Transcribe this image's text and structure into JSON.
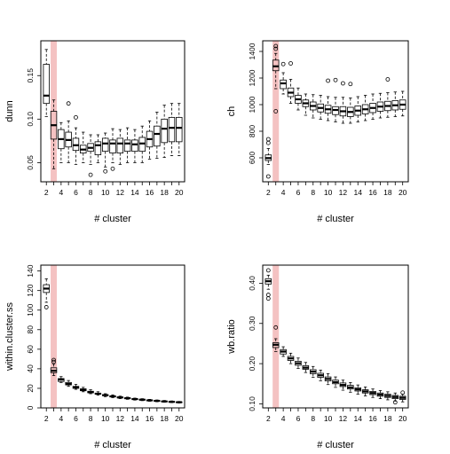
{
  "chart_data": [
    {
      "type": "boxplot",
      "xlabel": "# cluster",
      "ylabel": "dunn",
      "x_tick_labels": [
        "2",
        "4",
        "6",
        "8",
        "10",
        "12",
        "14",
        "16",
        "18",
        "20"
      ],
      "y_ticks": [
        0.05,
        0.1,
        0.15
      ],
      "y_tick_labels": [
        "0.05",
        "0.10",
        "0.15"
      ],
      "ylim": [
        0.028,
        0.19
      ],
      "highlight_cluster": 3,
      "highlight_color": "#f4c2c2",
      "boxes": [
        {
          "k": 2,
          "lo": 0.103,
          "q1": 0.118,
          "med": 0.127,
          "q3": 0.163,
          "hi": 0.18,
          "out": []
        },
        {
          "k": 3,
          "lo": 0.043,
          "q1": 0.077,
          "med": 0.093,
          "q3": 0.109,
          "hi": 0.122,
          "out": []
        },
        {
          "k": 4,
          "lo": 0.05,
          "q1": 0.066,
          "med": 0.077,
          "q3": 0.088,
          "hi": 0.096,
          "out": []
        },
        {
          "k": 5,
          "lo": 0.05,
          "q1": 0.068,
          "med": 0.076,
          "q3": 0.085,
          "hi": 0.098,
          "out": [
            0.118
          ]
        },
        {
          "k": 6,
          "lo": 0.048,
          "q1": 0.064,
          "med": 0.07,
          "q3": 0.078,
          "hi": 0.09,
          "out": [
            0.102
          ]
        },
        {
          "k": 7,
          "lo": 0.05,
          "q1": 0.061,
          "med": 0.065,
          "q3": 0.07,
          "hi": 0.085,
          "out": []
        },
        {
          "k": 8,
          "lo": 0.048,
          "q1": 0.063,
          "med": 0.067,
          "q3": 0.072,
          "hi": 0.082,
          "out": [
            0.036
          ]
        },
        {
          "k": 9,
          "lo": 0.05,
          "q1": 0.059,
          "med": 0.07,
          "q3": 0.074,
          "hi": 0.082,
          "out": []
        },
        {
          "k": 10,
          "lo": 0.045,
          "q1": 0.063,
          "med": 0.072,
          "q3": 0.078,
          "hi": 0.084,
          "out": [
            0.04
          ]
        },
        {
          "k": 11,
          "lo": 0.05,
          "q1": 0.061,
          "med": 0.072,
          "q3": 0.076,
          "hi": 0.089,
          "out": [
            0.043
          ]
        },
        {
          "k": 12,
          "lo": 0.048,
          "q1": 0.061,
          "med": 0.072,
          "q3": 0.078,
          "hi": 0.088,
          "out": []
        },
        {
          "k": 13,
          "lo": 0.05,
          "q1": 0.063,
          "med": 0.072,
          "q3": 0.076,
          "hi": 0.09,
          "out": []
        },
        {
          "k": 14,
          "lo": 0.05,
          "q1": 0.063,
          "med": 0.071,
          "q3": 0.076,
          "hi": 0.088,
          "out": []
        },
        {
          "k": 15,
          "lo": 0.05,
          "q1": 0.063,
          "med": 0.072,
          "q3": 0.079,
          "hi": 0.092,
          "out": []
        },
        {
          "k": 16,
          "lo": 0.054,
          "q1": 0.068,
          "med": 0.077,
          "q3": 0.086,
          "hi": 0.098,
          "out": []
        },
        {
          "k": 17,
          "lo": 0.055,
          "q1": 0.069,
          "med": 0.083,
          "q3": 0.092,
          "hi": 0.108,
          "out": []
        },
        {
          "k": 18,
          "lo": 0.056,
          "q1": 0.073,
          "med": 0.089,
          "q3": 0.1,
          "hi": 0.116,
          "out": []
        },
        {
          "k": 19,
          "lo": 0.058,
          "q1": 0.074,
          "med": 0.09,
          "q3": 0.102,
          "hi": 0.118,
          "out": []
        },
        {
          "k": 20,
          "lo": 0.058,
          "q1": 0.074,
          "med": 0.09,
          "q3": 0.102,
          "hi": 0.118,
          "out": []
        }
      ]
    },
    {
      "type": "boxplot",
      "xlabel": "# cluster",
      "ylabel": "ch",
      "x_tick_labels": [
        "2",
        "4",
        "6",
        "8",
        "10",
        "12",
        "14",
        "16",
        "18",
        "20"
      ],
      "y_ticks": [
        600,
        800,
        1000,
        1200,
        1400
      ],
      "y_tick_labels": [
        "600",
        "800",
        "1000",
        "1200",
        "1400"
      ],
      "ylim": [
        420,
        1480
      ],
      "highlight_cluster": 3,
      "highlight_color": "#f4c2c2",
      "boxes": [
        {
          "k": 2,
          "lo": 550,
          "q1": 580,
          "med": 598,
          "q3": 622,
          "hi": 670,
          "out": [
            712,
            740,
            460
          ]
        },
        {
          "k": 3,
          "lo": 1120,
          "q1": 1255,
          "med": 1288,
          "q3": 1335,
          "hi": 1385,
          "out": [
            1420,
            1440,
            950
          ]
        },
        {
          "k": 4,
          "lo": 1080,
          "q1": 1120,
          "med": 1160,
          "q3": 1185,
          "hi": 1240,
          "out": [
            1305
          ]
        },
        {
          "k": 5,
          "lo": 1010,
          "q1": 1060,
          "med": 1090,
          "q3": 1125,
          "hi": 1190,
          "out": [
            1310
          ]
        },
        {
          "k": 6,
          "lo": 960,
          "q1": 1010,
          "med": 1040,
          "q3": 1070,
          "hi": 1125,
          "out": []
        },
        {
          "k": 7,
          "lo": 920,
          "q1": 985,
          "med": 1010,
          "q3": 1035,
          "hi": 1080,
          "out": []
        },
        {
          "k": 8,
          "lo": 900,
          "q1": 960,
          "med": 990,
          "q3": 1020,
          "hi": 1075,
          "out": []
        },
        {
          "k": 9,
          "lo": 890,
          "q1": 945,
          "med": 975,
          "q3": 1005,
          "hi": 1070,
          "out": []
        },
        {
          "k": 10,
          "lo": 880,
          "q1": 935,
          "med": 965,
          "q3": 995,
          "hi": 1060,
          "out": [
            1180
          ]
        },
        {
          "k": 11,
          "lo": 870,
          "q1": 925,
          "med": 960,
          "q3": 985,
          "hi": 1055,
          "out": [
            1185
          ]
        },
        {
          "k": 12,
          "lo": 860,
          "q1": 915,
          "med": 950,
          "q3": 985,
          "hi": 1055,
          "out": [
            1160
          ]
        },
        {
          "k": 13,
          "lo": 860,
          "q1": 910,
          "med": 945,
          "q3": 980,
          "hi": 1050,
          "out": [
            1155
          ]
        },
        {
          "k": 14,
          "lo": 870,
          "q1": 920,
          "med": 955,
          "q3": 990,
          "hi": 1060,
          "out": []
        },
        {
          "k": 15,
          "lo": 880,
          "q1": 930,
          "med": 965,
          "q3": 1000,
          "hi": 1070,
          "out": []
        },
        {
          "k": 16,
          "lo": 890,
          "q1": 940,
          "med": 975,
          "q3": 1010,
          "hi": 1080,
          "out": []
        },
        {
          "k": 17,
          "lo": 900,
          "q1": 950,
          "med": 985,
          "q3": 1020,
          "hi": 1085,
          "out": []
        },
        {
          "k": 18,
          "lo": 905,
          "q1": 955,
          "med": 990,
          "q3": 1025,
          "hi": 1090,
          "out": [
            1190
          ]
        },
        {
          "k": 19,
          "lo": 910,
          "q1": 960,
          "med": 995,
          "q3": 1030,
          "hi": 1095,
          "out": []
        },
        {
          "k": 20,
          "lo": 915,
          "q1": 965,
          "med": 1000,
          "q3": 1035,
          "hi": 1100,
          "out": []
        }
      ]
    },
    {
      "type": "boxplot",
      "xlabel": "# cluster",
      "ylabel": "within.cluster.ss",
      "x_tick_labels": [
        "2",
        "4",
        "6",
        "8",
        "10",
        "12",
        "14",
        "16",
        "18",
        "20"
      ],
      "y_ticks": [
        0,
        20,
        40,
        60,
        80,
        100,
        120,
        140
      ],
      "y_tick_labels": [
        "0",
        "20",
        "40",
        "60",
        "80",
        "100",
        "120",
        "140"
      ],
      "ylim": [
        0,
        146
      ],
      "highlight_cluster": 3,
      "highlight_color": "#f4c2c2",
      "boxes": [
        {
          "k": 2,
          "lo": 108,
          "q1": 118,
          "med": 122,
          "q3": 126,
          "hi": 132,
          "out": [
            103
          ]
        },
        {
          "k": 3,
          "lo": 33,
          "q1": 36,
          "med": 38,
          "q3": 41,
          "hi": 45,
          "out": [
            47,
            49
          ]
        },
        {
          "k": 4,
          "lo": 26,
          "q1": 27,
          "med": 29,
          "q3": 30,
          "hi": 32,
          "out": []
        },
        {
          "k": 5,
          "lo": 22,
          "q1": 23.5,
          "med": 24.5,
          "q3": 26,
          "hi": 28,
          "out": []
        },
        {
          "k": 6,
          "lo": 19,
          "q1": 20,
          "med": 21,
          "q3": 22,
          "hi": 24,
          "out": []
        },
        {
          "k": 7,
          "lo": 16.5,
          "q1": 17.5,
          "med": 18.5,
          "q3": 19.5,
          "hi": 21,
          "out": []
        },
        {
          "k": 8,
          "lo": 14.5,
          "q1": 15.5,
          "med": 16,
          "q3": 17,
          "hi": 18.5,
          "out": []
        },
        {
          "k": 9,
          "lo": 13,
          "q1": 14,
          "med": 14.5,
          "q3": 15,
          "hi": 16.5,
          "out": []
        },
        {
          "k": 10,
          "lo": 11.5,
          "q1": 12.5,
          "med": 13,
          "q3": 13.5,
          "hi": 14.5,
          "out": []
        },
        {
          "k": 11,
          "lo": 10.5,
          "q1": 11.2,
          "med": 11.8,
          "q3": 12.3,
          "hi": 13.3,
          "out": []
        },
        {
          "k": 12,
          "lo": 9.5,
          "q1": 10.2,
          "med": 10.7,
          "q3": 11.2,
          "hi": 12,
          "out": []
        },
        {
          "k": 13,
          "lo": 8.8,
          "q1": 9.4,
          "med": 9.9,
          "q3": 10.3,
          "hi": 11,
          "out": []
        },
        {
          "k": 14,
          "lo": 8,
          "q1": 8.6,
          "med": 9,
          "q3": 9.4,
          "hi": 10,
          "out": []
        },
        {
          "k": 15,
          "lo": 7.4,
          "q1": 8,
          "med": 8.4,
          "q3": 8.8,
          "hi": 9.4,
          "out": []
        },
        {
          "k": 16,
          "lo": 6.8,
          "q1": 7.3,
          "med": 7.7,
          "q3": 8.1,
          "hi": 8.7,
          "out": []
        },
        {
          "k": 17,
          "lo": 6.3,
          "q1": 6.8,
          "med": 7.2,
          "q3": 7.5,
          "hi": 8.1,
          "out": []
        },
        {
          "k": 18,
          "lo": 5.8,
          "q1": 6.3,
          "med": 6.6,
          "q3": 7,
          "hi": 7.6,
          "out": []
        },
        {
          "k": 19,
          "lo": 5.4,
          "q1": 5.9,
          "med": 6.2,
          "q3": 6.5,
          "hi": 7.1,
          "out": []
        },
        {
          "k": 20,
          "lo": 5,
          "q1": 5.5,
          "med": 5.8,
          "q3": 6.1,
          "hi": 6.6,
          "out": []
        }
      ]
    },
    {
      "type": "boxplot",
      "xlabel": "# cluster",
      "ylabel": "wb.ratio",
      "x_tick_labels": [
        "2",
        "4",
        "6",
        "8",
        "10",
        "12",
        "14",
        "16",
        "18",
        "20"
      ],
      "y_ticks": [
        0.1,
        0.2,
        0.3,
        0.4
      ],
      "y_tick_labels": [
        "0.10",
        "0.20",
        "0.30",
        "0.40"
      ],
      "ylim": [
        0.09,
        0.445
      ],
      "highlight_cluster": 3,
      "highlight_color": "#f4c2c2",
      "boxes": [
        {
          "k": 2,
          "lo": 0.385,
          "q1": 0.398,
          "med": 0.405,
          "q3": 0.411,
          "hi": 0.42,
          "out": [
            0.432,
            0.371,
            0.362
          ]
        },
        {
          "k": 3,
          "lo": 0.23,
          "q1": 0.24,
          "med": 0.247,
          "q3": 0.252,
          "hi": 0.262,
          "out": [
            0.29
          ]
        },
        {
          "k": 4,
          "lo": 0.218,
          "q1": 0.224,
          "med": 0.23,
          "q3": 0.235,
          "hi": 0.242,
          "out": []
        },
        {
          "k": 5,
          "lo": 0.2,
          "q1": 0.208,
          "med": 0.213,
          "q3": 0.218,
          "hi": 0.226,
          "out": []
        },
        {
          "k": 6,
          "lo": 0.188,
          "q1": 0.196,
          "med": 0.201,
          "q3": 0.206,
          "hi": 0.214,
          "out": []
        },
        {
          "k": 7,
          "lo": 0.178,
          "q1": 0.186,
          "med": 0.19,
          "q3": 0.195,
          "hi": 0.203,
          "out": []
        },
        {
          "k": 8,
          "lo": 0.166,
          "q1": 0.175,
          "med": 0.18,
          "q3": 0.185,
          "hi": 0.193,
          "out": []
        },
        {
          "k": 9,
          "lo": 0.157,
          "q1": 0.166,
          "med": 0.171,
          "q3": 0.176,
          "hi": 0.184,
          "out": []
        },
        {
          "k": 10,
          "lo": 0.148,
          "q1": 0.157,
          "med": 0.162,
          "q3": 0.167,
          "hi": 0.175,
          "out": []
        },
        {
          "k": 11,
          "lo": 0.141,
          "q1": 0.15,
          "med": 0.154,
          "q3": 0.159,
          "hi": 0.167,
          "out": []
        },
        {
          "k": 12,
          "lo": 0.134,
          "q1": 0.143,
          "med": 0.147,
          "q3": 0.152,
          "hi": 0.159,
          "out": []
        },
        {
          "k": 13,
          "lo": 0.129,
          "q1": 0.137,
          "med": 0.141,
          "q3": 0.146,
          "hi": 0.153,
          "out": []
        },
        {
          "k": 14,
          "lo": 0.124,
          "q1": 0.132,
          "med": 0.136,
          "q3": 0.14,
          "hi": 0.147,
          "out": []
        },
        {
          "k": 15,
          "lo": 0.12,
          "q1": 0.127,
          "med": 0.131,
          "q3": 0.135,
          "hi": 0.142,
          "out": []
        },
        {
          "k": 16,
          "lo": 0.116,
          "q1": 0.123,
          "med": 0.127,
          "q3": 0.131,
          "hi": 0.137,
          "out": []
        },
        {
          "k": 17,
          "lo": 0.113,
          "q1": 0.119,
          "med": 0.123,
          "q3": 0.127,
          "hi": 0.133,
          "out": []
        },
        {
          "k": 18,
          "lo": 0.11,
          "q1": 0.116,
          "med": 0.12,
          "q3": 0.124,
          "hi": 0.13,
          "out": []
        },
        {
          "k": 19,
          "lo": 0.107,
          "q1": 0.113,
          "med": 0.117,
          "q3": 0.121,
          "hi": 0.127,
          "out": [
            0.104
          ]
        },
        {
          "k": 20,
          "lo": 0.105,
          "q1": 0.111,
          "med": 0.115,
          "q3": 0.119,
          "hi": 0.124,
          "out": [
            0.128
          ]
        }
      ]
    }
  ]
}
